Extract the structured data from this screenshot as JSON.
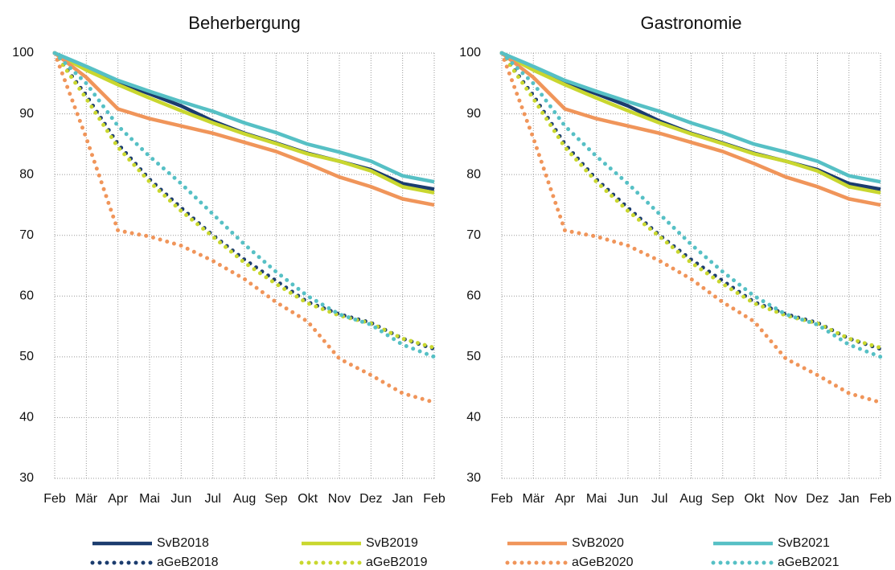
{
  "chart_data": [
    {
      "type": "line",
      "title": "Beherbergung",
      "categories": [
        "Feb",
        "Mär",
        "Apr",
        "Mai",
        "Jun",
        "Jul",
        "Aug",
        "Sep",
        "Okt",
        "Nov",
        "Dez",
        "Jan",
        "Feb"
      ],
      "ylim": [
        30,
        100
      ],
      "yticks": [
        30,
        40,
        50,
        60,
        70,
        80,
        90,
        100
      ],
      "grid": true,
      "legend": "bottom",
      "series": [
        {
          "name": "SvB2018",
          "color": "#1b3c6e",
          "style": "solid",
          "values": [
            100,
            97.5,
            95.2,
            93.3,
            91.3,
            88.8,
            86.8,
            85.2,
            83.5,
            82.2,
            80.8,
            78.5,
            77.6
          ]
        },
        {
          "name": "SvB2019",
          "color": "#c9d72f",
          "style": "solid",
          "values": [
            100,
            97.2,
            94.8,
            92.6,
            90.5,
            88.5,
            86.7,
            85.1,
            83.4,
            82.2,
            80.6,
            78.0,
            77.0
          ]
        },
        {
          "name": "SvB2020",
          "color": "#f0955a",
          "style": "solid",
          "values": [
            100,
            96,
            90.8,
            89.2,
            88.0,
            86.8,
            85.3,
            83.8,
            81.8,
            79.6,
            78.0,
            76.0,
            75.0
          ]
        },
        {
          "name": "SvB2021",
          "color": "#56c0c5",
          "style": "solid",
          "values": [
            100,
            97.8,
            95.5,
            93.7,
            92.0,
            90.4,
            88.5,
            86.9,
            85.0,
            83.7,
            82.2,
            79.8,
            78.8
          ]
        },
        {
          "name": "aGeB2018",
          "color": "#1b3c6e",
          "style": "dotted",
          "values": [
            100,
            93,
            85,
            79.2,
            74.5,
            70,
            66,
            62.5,
            59,
            57,
            55.6,
            53,
            51.3
          ]
        },
        {
          "name": "aGeB2019",
          "color": "#c9d72f",
          "style": "dotted",
          "values": [
            100,
            92.5,
            84.5,
            78.8,
            74,
            69.8,
            65.5,
            62,
            58.8,
            56.8,
            55.5,
            53,
            51.5
          ]
        },
        {
          "name": "aGeB2020",
          "color": "#f0955a",
          "style": "dotted",
          "values": [
            100,
            86,
            70.8,
            69.8,
            68.3,
            65.8,
            62.8,
            59,
            55.8,
            49.7,
            47,
            44,
            42.5
          ]
        },
        {
          "name": "aGeB2021",
          "color": "#56c0c5",
          "style": "dotted",
          "values": [
            100,
            95,
            88,
            83,
            78.5,
            73.5,
            68.5,
            64,
            60,
            57,
            55.3,
            52,
            50
          ]
        }
      ]
    },
    {
      "type": "line",
      "title": "Gastronomie",
      "categories": [
        "Feb",
        "Mär",
        "Apr",
        "Mai",
        "Jun",
        "Jul",
        "Aug",
        "Sep",
        "Okt",
        "Nov",
        "Dez",
        "Jan",
        "Feb"
      ],
      "ylim": [
        30,
        100
      ],
      "yticks": [
        30,
        40,
        50,
        60,
        70,
        80,
        90,
        100
      ],
      "grid": true,
      "series": [
        {
          "color": "#1b3c6e",
          "style": "solid",
          "values": [
            100,
            97.5,
            95.2,
            93.3,
            91.3,
            88.8,
            86.8,
            85.2,
            83.5,
            82.2,
            80.8,
            78.5,
            77.6
          ]
        },
        {
          "color": "#c9d72f",
          "style": "solid",
          "values": [
            100,
            97.2,
            94.8,
            92.6,
            90.5,
            88.5,
            86.7,
            85.1,
            83.4,
            82.2,
            80.6,
            78.0,
            77.0
          ]
        },
        {
          "color": "#f0955a",
          "style": "solid",
          "values": [
            100,
            96,
            90.8,
            89.2,
            88.0,
            86.8,
            85.3,
            83.8,
            81.8,
            79.6,
            78.0,
            76.0,
            75.0
          ]
        },
        {
          "color": "#56c0c5",
          "style": "solid",
          "values": [
            100,
            97.8,
            95.5,
            93.7,
            92.0,
            90.4,
            88.5,
            86.9,
            85.0,
            83.7,
            82.2,
            79.8,
            78.8
          ]
        },
        {
          "color": "#1b3c6e",
          "style": "dotted",
          "values": [
            100,
            93,
            85,
            79.2,
            74.5,
            70,
            66,
            62.5,
            59,
            57,
            55.6,
            53,
            51.3
          ]
        },
        {
          "color": "#c9d72f",
          "style": "dotted",
          "values": [
            100,
            92.5,
            84.5,
            78.8,
            74,
            69.8,
            65.5,
            62,
            58.8,
            56.8,
            55.5,
            53,
            51.5
          ]
        },
        {
          "color": "#f0955a",
          "style": "dotted",
          "values": [
            100,
            86,
            70.8,
            69.8,
            68.3,
            65.8,
            62.8,
            59,
            55.8,
            49.7,
            47,
            44,
            42.5
          ]
        },
        {
          "color": "#56c0c5",
          "style": "dotted",
          "values": [
            100,
            95,
            88,
            83,
            78.5,
            73.5,
            68.5,
            64,
            60,
            57,
            55.3,
            52,
            50
          ]
        }
      ]
    }
  ]
}
